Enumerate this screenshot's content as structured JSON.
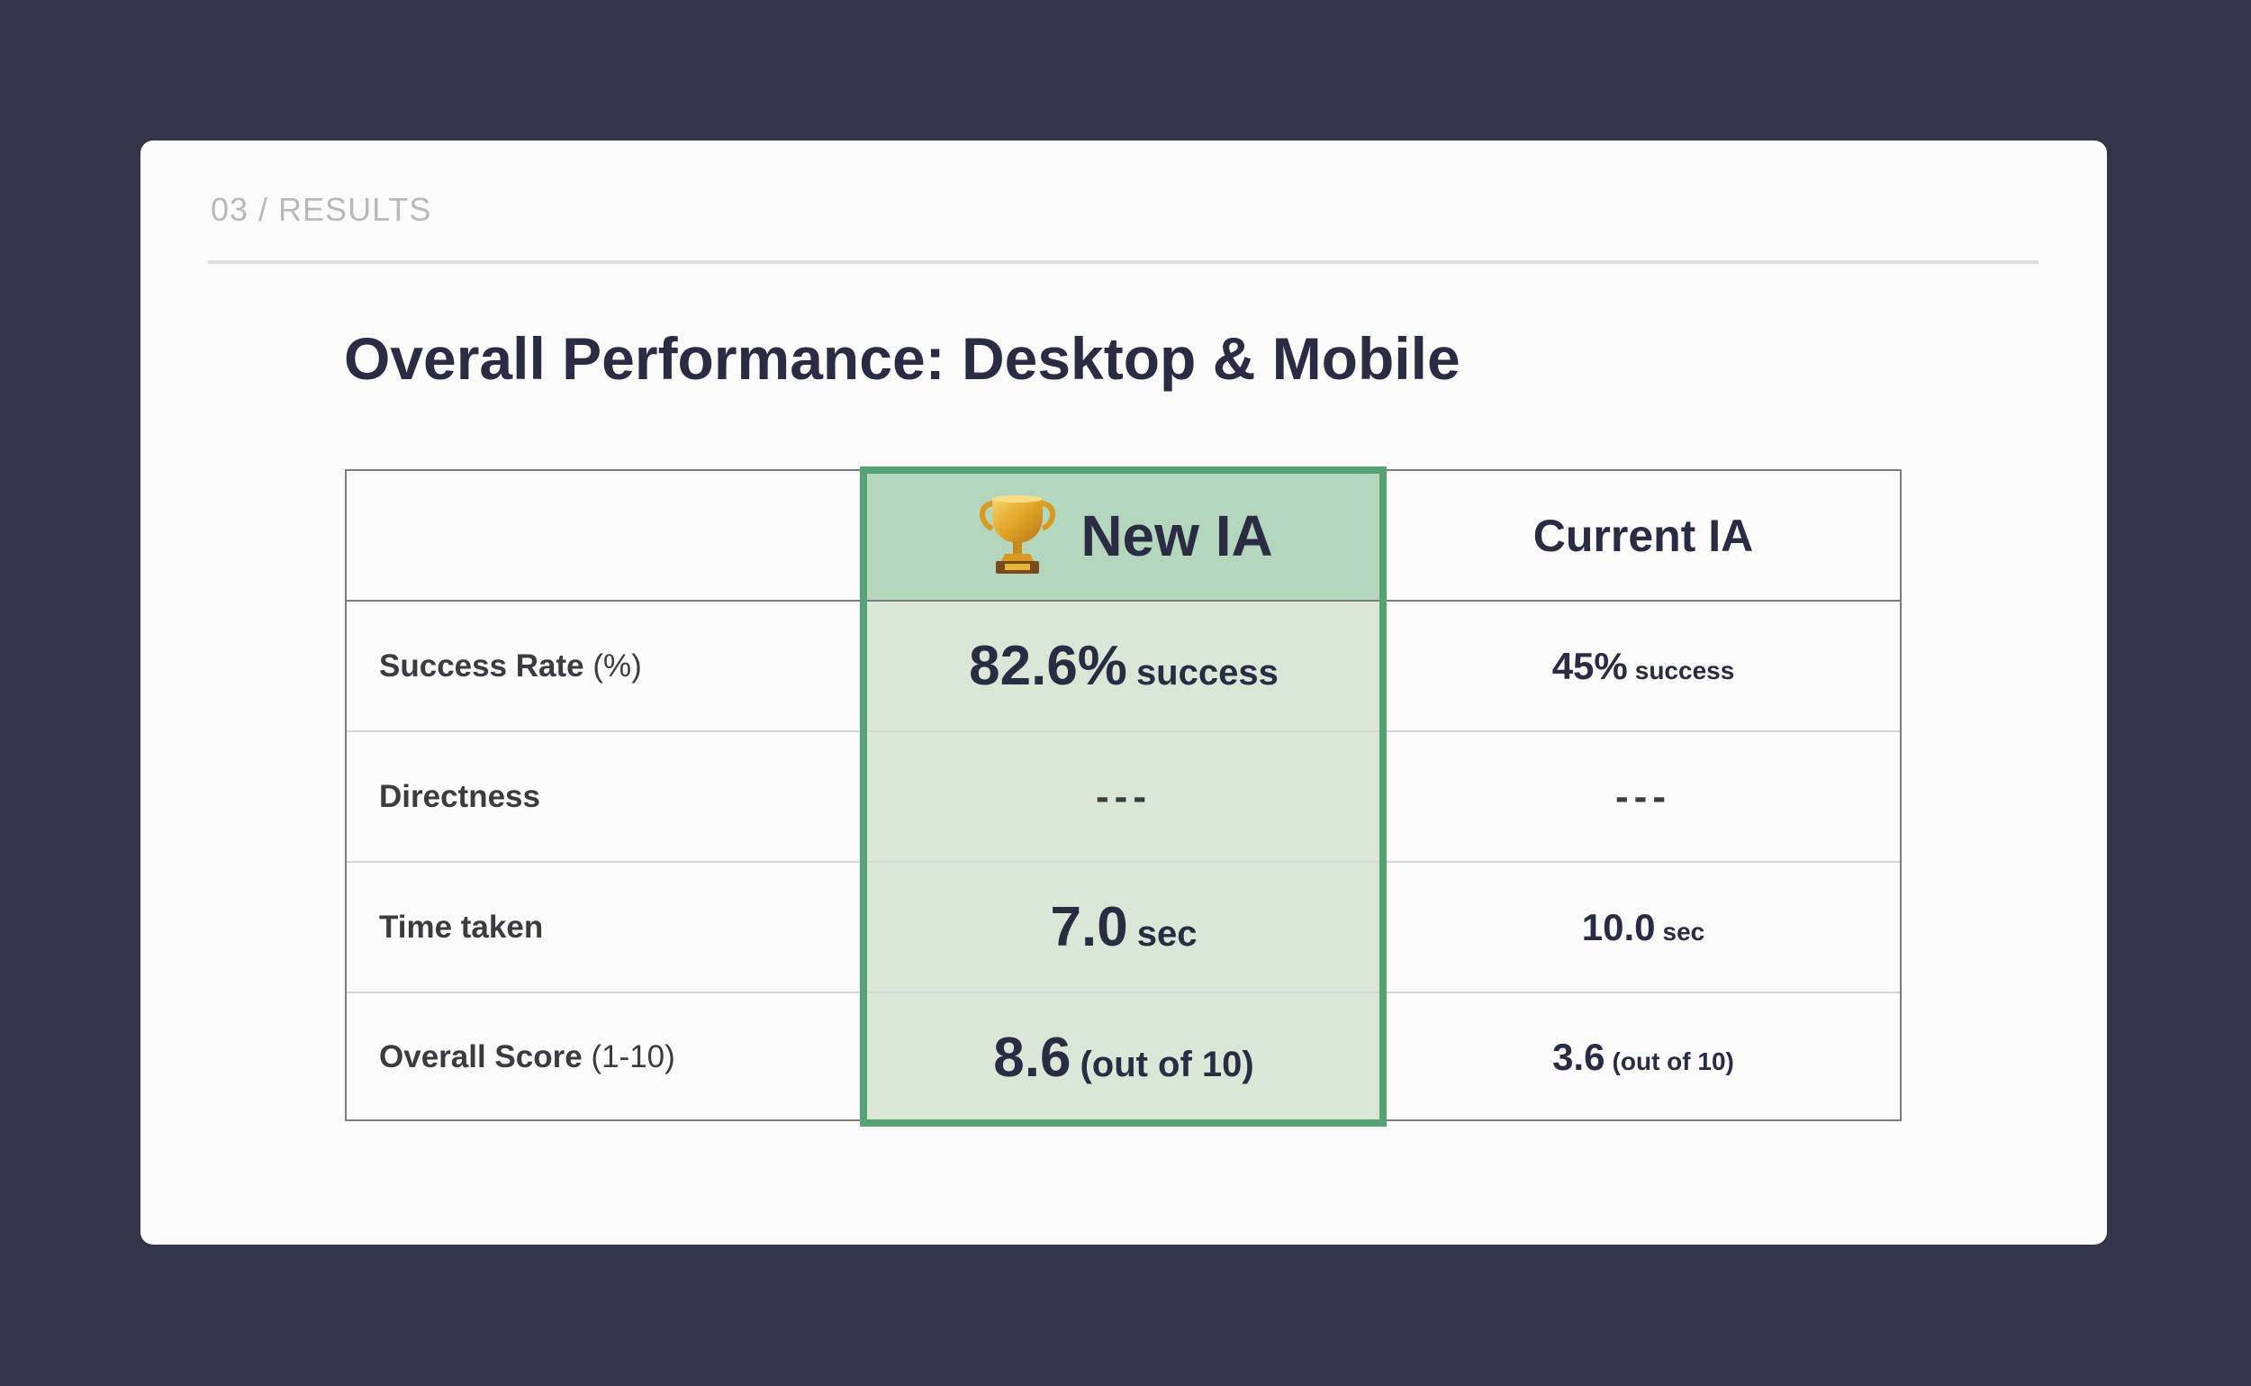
{
  "section": "03 / RESULTS",
  "title": "Overall Performance: Desktop & Mobile",
  "colors": {
    "background": "#343548",
    "card": "#fbfbfb",
    "highlight_border": "#55a272",
    "highlight_header": "#b3d6bd",
    "highlight_body": "#dae7d7",
    "text": "#2a2c44"
  },
  "table": {
    "columns": {
      "new": {
        "icon": "trophy-icon",
        "label": "New IA"
      },
      "current": {
        "label": "Current IA"
      }
    },
    "rows": [
      {
        "label": "Success Rate",
        "label_paren": "(%)",
        "new_value": "82.6%",
        "new_unit": "success",
        "current_value": "45%",
        "current_unit": "success"
      },
      {
        "label": "Directness",
        "label_paren": "",
        "new_value": "---",
        "new_unit": "",
        "current_value": "---",
        "current_unit": ""
      },
      {
        "label": "Time taken",
        "label_paren": "",
        "new_value": "7.0",
        "new_unit": "sec",
        "current_value": "10.0",
        "current_unit": "sec"
      },
      {
        "label": "Overall Score",
        "label_paren": "(1-10)",
        "new_value": "8.6",
        "new_unit": "(out of 10)",
        "current_value": "3.6",
        "current_unit": "(out of 10)"
      }
    ]
  }
}
